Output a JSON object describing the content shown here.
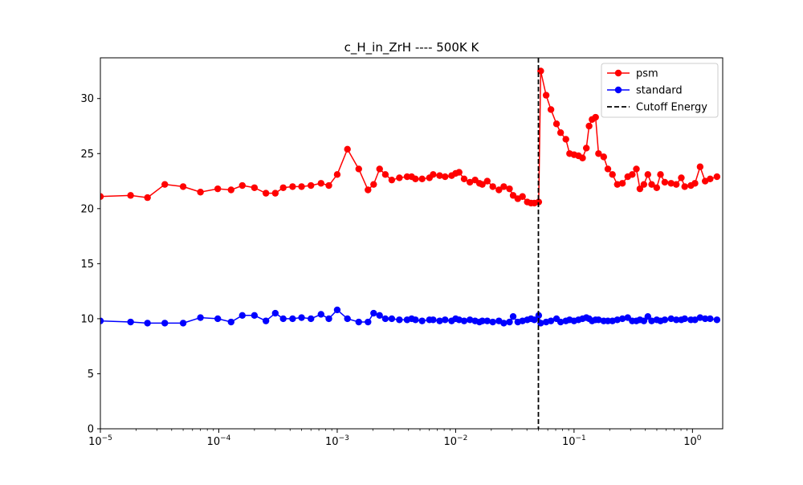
{
  "chart_data": {
    "type": "line",
    "title": "c_H_in_ZrH  ----   500K K",
    "xlabel": "",
    "ylabel": "",
    "x_scale": "log",
    "xlim": [
      1e-05,
      1.8
    ],
    "ylim": [
      0,
      33.7
    ],
    "x_tick_labels": [
      "10^-5",
      "10^-4",
      "10^-3",
      "10^-2",
      "10^-1",
      "10^0"
    ],
    "y_ticks": [
      0,
      5,
      10,
      15,
      20,
      25,
      30
    ],
    "y_tick_labels": [
      "0",
      "5",
      "10",
      "15",
      "20",
      "25",
      "30"
    ],
    "grid": false,
    "legend_position": "upper right",
    "cutoff_energy": 0.05,
    "series": [
      {
        "name": "psm",
        "color": "#ff0000",
        "points": [
          [
            1e-05,
            21.1
          ],
          [
            1.8e-05,
            21.2
          ],
          [
            2.5e-05,
            21.0
          ],
          [
            3.5e-05,
            22.2
          ],
          [
            5e-05,
            22.0
          ],
          [
            7e-05,
            21.5
          ],
          [
            9.8e-05,
            21.8
          ],
          [
            0.000127,
            21.7
          ],
          [
            0.000158,
            22.1
          ],
          [
            0.0002,
            21.9
          ],
          [
            0.00025,
            21.4
          ],
          [
            0.0003,
            21.4
          ],
          [
            0.00035,
            21.9
          ],
          [
            0.00042,
            22.0
          ],
          [
            0.0005,
            22.0
          ],
          [
            0.0006,
            22.1
          ],
          [
            0.00073,
            22.3
          ],
          [
            0.00085,
            22.1
          ],
          [
            0.001,
            23.1
          ],
          [
            0.00122,
            25.4
          ],
          [
            0.00152,
            23.6
          ],
          [
            0.00182,
            21.7
          ],
          [
            0.00203,
            22.2
          ],
          [
            0.00228,
            23.6
          ],
          [
            0.00255,
            23.1
          ],
          [
            0.00289,
            22.6
          ],
          [
            0.00335,
            22.8
          ],
          [
            0.00389,
            22.9
          ],
          [
            0.00425,
            22.9
          ],
          [
            0.00458,
            22.7
          ],
          [
            0.00521,
            22.7
          ],
          [
            0.00601,
            22.8
          ],
          [
            0.00646,
            23.1
          ],
          [
            0.00733,
            23.0
          ],
          [
            0.00815,
            22.9
          ],
          [
            0.00925,
            23.0
          ],
          [
            0.01,
            23.2
          ],
          [
            0.0107,
            23.3
          ],
          [
            0.0118,
            22.7
          ],
          [
            0.0132,
            22.4
          ],
          [
            0.0146,
            22.6
          ],
          [
            0.0159,
            22.3
          ],
          [
            0.0168,
            22.2
          ],
          [
            0.0185,
            22.5
          ],
          [
            0.0206,
            22.0
          ],
          [
            0.0232,
            21.7
          ],
          [
            0.0255,
            22.0
          ],
          [
            0.0285,
            21.8
          ],
          [
            0.0306,
            21.2
          ],
          [
            0.0335,
            20.9
          ],
          [
            0.0367,
            21.1
          ],
          [
            0.0403,
            20.6
          ],
          [
            0.0433,
            20.5
          ],
          [
            0.0462,
            20.5
          ],
          [
            0.0503,
            20.6
          ],
          [
            0.0523,
            32.5
          ],
          [
            0.0581,
            30.3
          ],
          [
            0.0638,
            29.0
          ],
          [
            0.0711,
            27.7
          ],
          [
            0.077,
            26.9
          ],
          [
            0.0853,
            26.3
          ],
          [
            0.0917,
            25.0
          ],
          [
            0.1,
            24.9
          ],
          [
            0.109,
            24.8
          ],
          [
            0.118,
            24.6
          ],
          [
            0.127,
            25.5
          ],
          [
            0.134,
            27.5
          ],
          [
            0.142,
            28.1
          ],
          [
            0.152,
            28.3
          ],
          [
            0.161,
            25.0
          ],
          [
            0.178,
            24.7
          ],
          [
            0.193,
            23.6
          ],
          [
            0.211,
            23.1
          ],
          [
            0.232,
            22.2
          ],
          [
            0.256,
            22.3
          ],
          [
            0.284,
            22.9
          ],
          [
            0.31,
            23.1
          ],
          [
            0.336,
            23.6
          ],
          [
            0.36,
            21.8
          ],
          [
            0.389,
            22.2
          ],
          [
            0.42,
            23.1
          ],
          [
            0.452,
            22.2
          ],
          [
            0.499,
            21.9
          ],
          [
            0.537,
            23.1
          ],
          [
            0.584,
            22.4
          ],
          [
            0.66,
            22.3
          ],
          [
            0.73,
            22.2
          ],
          [
            0.805,
            22.8
          ],
          [
            0.86,
            22.0
          ],
          [
            0.97,
            22.1
          ],
          [
            1.05,
            22.3
          ],
          [
            1.16,
            23.8
          ],
          [
            1.28,
            22.5
          ],
          [
            1.41,
            22.7
          ],
          [
            1.61,
            22.9
          ]
        ]
      },
      {
        "name": "standard",
        "color": "#0000ff",
        "points": [
          [
            1e-05,
            9.8
          ],
          [
            1.8e-05,
            9.7
          ],
          [
            2.5e-05,
            9.6
          ],
          [
            3.5e-05,
            9.6
          ],
          [
            5e-05,
            9.6
          ],
          [
            7e-05,
            10.1
          ],
          [
            9.8e-05,
            10.0
          ],
          [
            0.000127,
            9.7
          ],
          [
            0.000158,
            10.3
          ],
          [
            0.0002,
            10.3
          ],
          [
            0.00025,
            9.8
          ],
          [
            0.0003,
            10.5
          ],
          [
            0.00035,
            10.0
          ],
          [
            0.00042,
            10.0
          ],
          [
            0.0005,
            10.1
          ],
          [
            0.0006,
            10.0
          ],
          [
            0.00073,
            10.4
          ],
          [
            0.00085,
            10.0
          ],
          [
            0.001,
            10.8
          ],
          [
            0.00122,
            10.0
          ],
          [
            0.00152,
            9.7
          ],
          [
            0.00182,
            9.7
          ],
          [
            0.00203,
            10.5
          ],
          [
            0.00228,
            10.3
          ],
          [
            0.00255,
            10.0
          ],
          [
            0.00289,
            10.0
          ],
          [
            0.00335,
            9.9
          ],
          [
            0.00389,
            9.9
          ],
          [
            0.00425,
            10.0
          ],
          [
            0.00458,
            9.9
          ],
          [
            0.00521,
            9.8
          ],
          [
            0.00601,
            9.9
          ],
          [
            0.00646,
            9.9
          ],
          [
            0.00733,
            9.8
          ],
          [
            0.00815,
            9.9
          ],
          [
            0.00925,
            9.8
          ],
          [
            0.01,
            10.0
          ],
          [
            0.0107,
            9.9
          ],
          [
            0.0118,
            9.8
          ],
          [
            0.0132,
            9.9
          ],
          [
            0.0146,
            9.8
          ],
          [
            0.0159,
            9.7
          ],
          [
            0.0168,
            9.8
          ],
          [
            0.0185,
            9.8
          ],
          [
            0.0206,
            9.7
          ],
          [
            0.0232,
            9.8
          ],
          [
            0.0255,
            9.6
          ],
          [
            0.0285,
            9.7
          ],
          [
            0.0306,
            10.2
          ],
          [
            0.0335,
            9.7
          ],
          [
            0.0367,
            9.8
          ],
          [
            0.0403,
            9.9
          ],
          [
            0.0433,
            10.0
          ],
          [
            0.0462,
            9.9
          ],
          [
            0.0503,
            10.3
          ],
          [
            0.0523,
            9.6
          ],
          [
            0.0581,
            9.7
          ],
          [
            0.0638,
            9.8
          ],
          [
            0.0711,
            10.0
          ],
          [
            0.077,
            9.7
          ],
          [
            0.0853,
            9.8
          ],
          [
            0.0917,
            9.9
          ],
          [
            0.1,
            9.8
          ],
          [
            0.109,
            9.9
          ],
          [
            0.118,
            10.0
          ],
          [
            0.127,
            10.1
          ],
          [
            0.134,
            10.0
          ],
          [
            0.142,
            9.8
          ],
          [
            0.152,
            9.9
          ],
          [
            0.161,
            9.9
          ],
          [
            0.178,
            9.8
          ],
          [
            0.193,
            9.8
          ],
          [
            0.211,
            9.8
          ],
          [
            0.232,
            9.9
          ],
          [
            0.256,
            10.0
          ],
          [
            0.284,
            10.1
          ],
          [
            0.31,
            9.8
          ],
          [
            0.336,
            9.8
          ],
          [
            0.36,
            9.9
          ],
          [
            0.389,
            9.8
          ],
          [
            0.42,
            10.2
          ],
          [
            0.452,
            9.8
          ],
          [
            0.499,
            9.9
          ],
          [
            0.537,
            9.8
          ],
          [
            0.584,
            9.9
          ],
          [
            0.66,
            10.0
          ],
          [
            0.73,
            9.9
          ],
          [
            0.805,
            9.9
          ],
          [
            0.86,
            10.0
          ],
          [
            0.97,
            9.9
          ],
          [
            1.05,
            9.9
          ],
          [
            1.16,
            10.1
          ],
          [
            1.28,
            10.0
          ],
          [
            1.41,
            10.0
          ],
          [
            1.61,
            9.9
          ]
        ]
      }
    ],
    "reference_lines": [
      {
        "name": "Cutoff Energy",
        "x": 0.05,
        "color": "#000000",
        "style": "dashed"
      }
    ]
  }
}
